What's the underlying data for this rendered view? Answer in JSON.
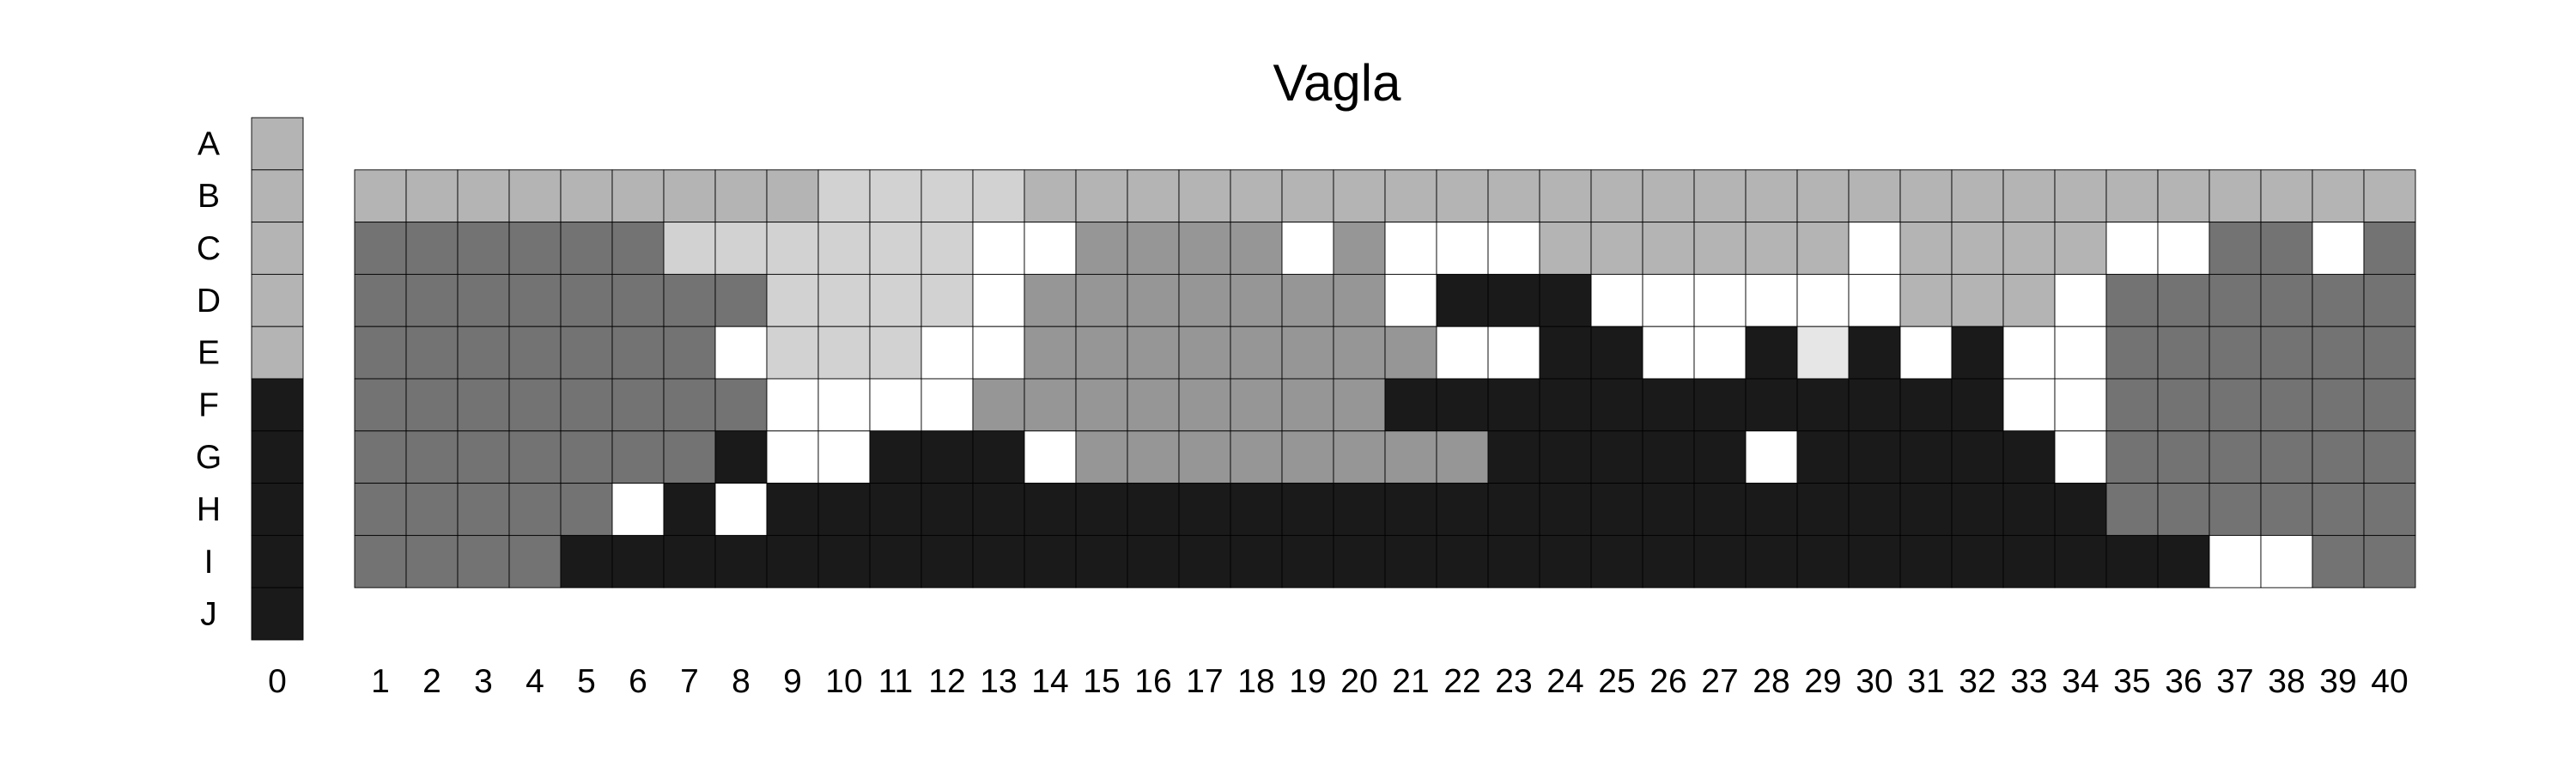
{
  "chart_data": {
    "type": "heatmap",
    "title": "Vagla",
    "xlabel": "",
    "ylabel": "",
    "rows": [
      "A",
      "B",
      "C",
      "D",
      "E",
      "F",
      "G",
      "H",
      "I",
      "J"
    ],
    "columns": [
      "0",
      "1",
      "2",
      "3",
      "4",
      "5",
      "6",
      "7",
      "8",
      "9",
      "10",
      "11",
      "12",
      "13",
      "14",
      "15",
      "16",
      "17",
      "18",
      "19",
      "20",
      "21",
      "22",
      "23",
      "24",
      "25",
      "26",
      "27",
      "28",
      "29",
      "30",
      "31",
      "32",
      "33",
      "34",
      "35",
      "36",
      "37",
      "38",
      "39",
      "40"
    ],
    "legend": {
      "0": "#ffffff",
      "1": "#e6e6e6",
      "2": "#d2d2d2",
      "3": "#b4b4b4",
      "4": "#969696",
      "5": "#737373",
      "6": "#1a1a1a"
    },
    "column_0": [
      "3",
      "3",
      "3",
      "3",
      "3",
      "6",
      "6",
      "6",
      "6",
      "6"
    ],
    "grid": {
      "B": [
        "3",
        "3",
        "3",
        "3",
        "3",
        "3",
        "3",
        "3",
        "3",
        "2",
        "2",
        "2",
        "2",
        "3",
        "3",
        "3",
        "3",
        "3",
        "3",
        "3",
        "3",
        "3",
        "3",
        "3",
        "3",
        "3",
        "3",
        "3",
        "3",
        "3",
        "3",
        "3",
        "3",
        "3",
        "3",
        "3",
        "3",
        "3",
        "3",
        "3"
      ],
      "C": [
        "5",
        "5",
        "5",
        "5",
        "5",
        "5",
        "2",
        "2",
        "2",
        "2",
        "2",
        "2",
        "0",
        "0",
        "4",
        "4",
        "4",
        "4",
        "0",
        "4",
        "0",
        "0",
        "0",
        "3",
        "3",
        "3",
        "3",
        "3",
        "3",
        "0",
        "3",
        "3",
        "3",
        "3",
        "0",
        "0",
        "5",
        "5",
        "0",
        "5"
      ],
      "D": [
        "5",
        "5",
        "5",
        "5",
        "5",
        "5",
        "5",
        "5",
        "2",
        "2",
        "2",
        "2",
        "0",
        "4",
        "4",
        "4",
        "4",
        "4",
        "4",
        "4",
        "0",
        "6",
        "6",
        "6",
        "0",
        "0",
        "0",
        "0",
        "0",
        "0",
        "3",
        "3",
        "3",
        "0",
        "5",
        "5",
        "5",
        "5",
        "5",
        "5"
      ],
      "E": [
        "5",
        "5",
        "5",
        "5",
        "5",
        "5",
        "5",
        "0",
        "2",
        "2",
        "2",
        "0",
        "0",
        "4",
        "4",
        "4",
        "4",
        "4",
        "4",
        "4",
        "4",
        "0",
        "0",
        "6",
        "6",
        "0",
        "0",
        "6",
        "1",
        "6",
        "0",
        "6",
        "0",
        "0",
        "5",
        "5",
        "5",
        "5",
        "5",
        "5"
      ],
      "F": [
        "5",
        "5",
        "5",
        "5",
        "5",
        "5",
        "5",
        "5",
        "0",
        "0",
        "0",
        "0",
        "4",
        "4",
        "4",
        "4",
        "4",
        "4",
        "4",
        "4",
        "6",
        "6",
        "6",
        "6",
        "6",
        "6",
        "6",
        "6",
        "6",
        "6",
        "6",
        "6",
        "0",
        "0",
        "5",
        "5",
        "5",
        "5",
        "5",
        "5"
      ],
      "G": [
        "5",
        "5",
        "5",
        "5",
        "5",
        "5",
        "5",
        "6",
        "0",
        "0",
        "6",
        "6",
        "6",
        "0",
        "4",
        "4",
        "4",
        "4",
        "4",
        "4",
        "4",
        "4",
        "6",
        "6",
        "6",
        "6",
        "6",
        "0",
        "6",
        "6",
        "6",
        "6",
        "6",
        "0",
        "5",
        "5",
        "5",
        "5",
        "5",
        "5"
      ],
      "H": [
        "5",
        "5",
        "5",
        "5",
        "5",
        "0",
        "6",
        "0",
        "6",
        "6",
        "6",
        "6",
        "6",
        "6",
        "6",
        "6",
        "6",
        "6",
        "6",
        "6",
        "6",
        "6",
        "6",
        "6",
        "6",
        "6",
        "6",
        "6",
        "6",
        "6",
        "6",
        "6",
        "6",
        "6",
        "5",
        "5",
        "5",
        "5",
        "5",
        "5"
      ],
      "I": [
        "5",
        "5",
        "5",
        "5",
        "6",
        "6",
        "6",
        "6",
        "6",
        "6",
        "6",
        "6",
        "6",
        "6",
        "6",
        "6",
        "6",
        "6",
        "6",
        "6",
        "6",
        "6",
        "6",
        "6",
        "6",
        "6",
        "6",
        "6",
        "6",
        "6",
        "6",
        "6",
        "6",
        "6",
        "6",
        "6",
        "0",
        "0",
        "5",
        "5"
      ]
    }
  }
}
